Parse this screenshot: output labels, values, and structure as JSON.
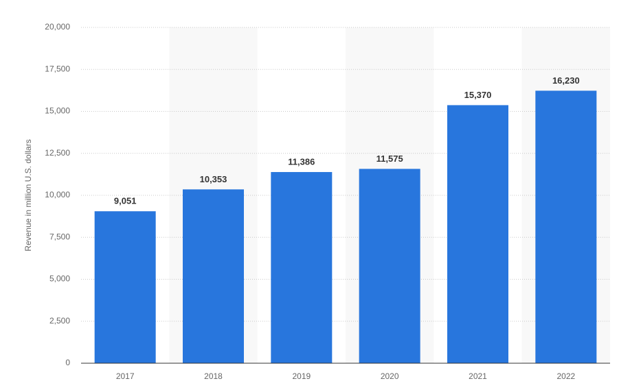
{
  "chart_data": {
    "type": "bar",
    "y_axis_label": "Revenue in million U.S. dollars",
    "categories": [
      "2017",
      "2018",
      "2019",
      "2020",
      "2021",
      "2022"
    ],
    "values": [
      9051,
      10353,
      11386,
      11575,
      15370,
      16230
    ],
    "value_labels": [
      "9,051",
      "10,353",
      "11,386",
      "11,575",
      "15,370",
      "16,230"
    ],
    "color": "#2876dd",
    "ylim": [
      0,
      20000
    ],
    "yticks": [
      0,
      {
        "value": 2500,
        "label": "2,500"
      },
      {
        "value": 5000,
        "label": "5,000"
      },
      {
        "value": 7500,
        "label": "7,500"
      },
      {
        "value": 10000,
        "label": "10,000"
      },
      {
        "value": 12500,
        "label": "12,500"
      },
      {
        "value": 15000,
        "label": "15,000"
      },
      {
        "value": 17500,
        "label": "17,500"
      },
      {
        "value": 20000,
        "label": "20,000"
      }
    ],
    "grid": true
  }
}
